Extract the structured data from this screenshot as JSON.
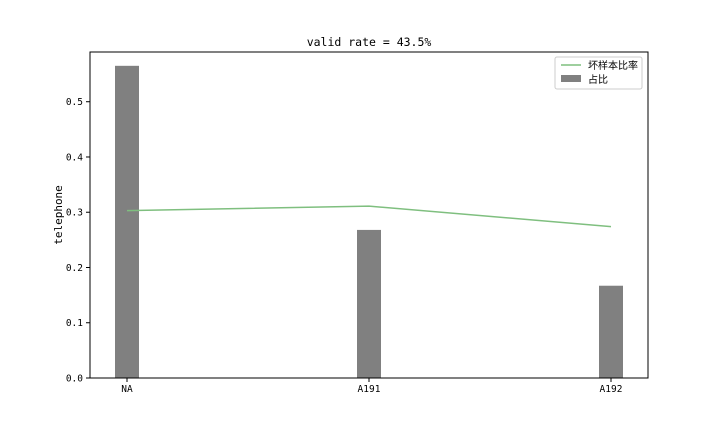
{
  "chart_data": {
    "type": "bar",
    "title": "valid rate = 43.5%",
    "xlabel": "",
    "ylabel": "telephone",
    "categories": [
      "NA",
      "A191",
      "A192"
    ],
    "ylim": [
      0,
      0.59
    ],
    "yticks": [
      0.0,
      0.1,
      0.2,
      0.3,
      0.4,
      0.5
    ],
    "ytick_labels": [
      "0.0",
      "0.1",
      "0.2",
      "0.3",
      "0.4",
      "0.5"
    ],
    "grid": false,
    "legend_position": "top-right",
    "series": [
      {
        "name": "占比",
        "kind": "bar",
        "color": "#808080",
        "values": [
          0.565,
          0.268,
          0.167
        ]
      },
      {
        "name": "坏样本比率",
        "kind": "line",
        "color": "#7fbf7f",
        "values": [
          0.303,
          0.311,
          0.274
        ]
      }
    ]
  }
}
